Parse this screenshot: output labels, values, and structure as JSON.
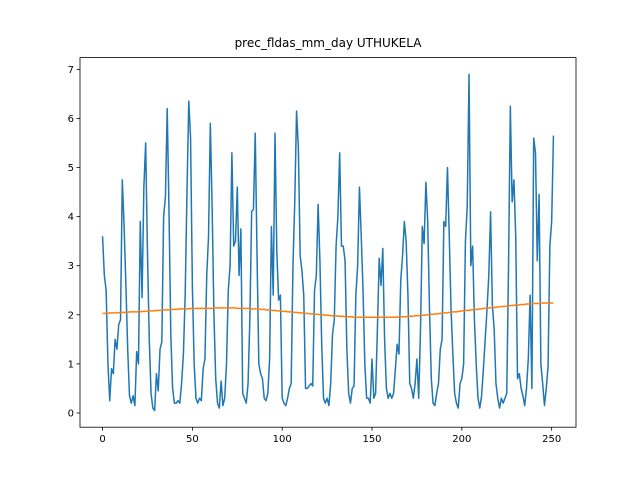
{
  "chart_data": {
    "type": "line",
    "title": "prec_fldas_mm_day UTHUKELA",
    "x": [
      0,
      1,
      2,
      3,
      4,
      5,
      6,
      7,
      8,
      9,
      10,
      11,
      12,
      13,
      14,
      15,
      16,
      17,
      18,
      19,
      20,
      21,
      22,
      23,
      24,
      25,
      26,
      27,
      28,
      29,
      30,
      31,
      32,
      33,
      34,
      35,
      36,
      37,
      38,
      39,
      40,
      41,
      42,
      43,
      44,
      45,
      46,
      47,
      48,
      49,
      50,
      51,
      52,
      53,
      54,
      55,
      56,
      57,
      58,
      59,
      60,
      61,
      62,
      63,
      64,
      65,
      66,
      67,
      68,
      69,
      70,
      71,
      72,
      73,
      74,
      75,
      76,
      77,
      78,
      79,
      80,
      81,
      82,
      83,
      84,
      85,
      86,
      87,
      88,
      89,
      90,
      91,
      92,
      93,
      94,
      95,
      96,
      97,
      98,
      99,
      100,
      101,
      102,
      103,
      104,
      105,
      106,
      107,
      108,
      109,
      110,
      111,
      112,
      113,
      114,
      115,
      116,
      117,
      118,
      119,
      120,
      121,
      122,
      123,
      124,
      125,
      126,
      127,
      128,
      129,
      130,
      131,
      132,
      133,
      134,
      135,
      136,
      137,
      138,
      139,
      140,
      141,
      142,
      143,
      144,
      145,
      146,
      147,
      148,
      149,
      150,
      151,
      152,
      153,
      154,
      155,
      156,
      157,
      158,
      159,
      160,
      161,
      162,
      163,
      164,
      165,
      166,
      167,
      168,
      169,
      170,
      171,
      172,
      173,
      174,
      175,
      176,
      177,
      178,
      179,
      180,
      181,
      182,
      183,
      184,
      185,
      186,
      187,
      188,
      189,
      190,
      191,
      192,
      193,
      194,
      195,
      196,
      197,
      198,
      199,
      200,
      201,
      202,
      203,
      204,
      205,
      206,
      207,
      208,
      209,
      210,
      211,
      212,
      213,
      214,
      215,
      216,
      217,
      218,
      219,
      220,
      221,
      222,
      223,
      224,
      225,
      226,
      227,
      228,
      229,
      230,
      231,
      232,
      233,
      234,
      235,
      236,
      237,
      238,
      239,
      240,
      241,
      242,
      243,
      244,
      245,
      246,
      247,
      248,
      249,
      250,
      251
    ],
    "series": [
      {
        "color": "#1f77b4",
        "values": [
          3.6,
          2.8,
          2.5,
          1.0,
          0.25,
          0.9,
          0.8,
          1.5,
          1.3,
          1.8,
          1.9,
          4.75,
          3.8,
          2.6,
          1.3,
          0.35,
          0.2,
          0.35,
          0.15,
          1.25,
          1.0,
          3.9,
          2.35,
          4.6,
          5.5,
          3.3,
          1.5,
          0.4,
          0.1,
          0.05,
          0.8,
          0.45,
          1.3,
          1.45,
          4.0,
          4.4,
          6.2,
          4.1,
          1.6,
          0.5,
          0.2,
          0.2,
          0.25,
          0.2,
          0.6,
          1.2,
          2.4,
          4.5,
          6.35,
          5.6,
          2.6,
          1.0,
          0.3,
          0.2,
          0.3,
          0.25,
          0.9,
          1.1,
          2.8,
          3.6,
          5.9,
          4.2,
          2.0,
          0.7,
          0.2,
          0.1,
          0.65,
          0.15,
          0.3,
          1.0,
          2.5,
          3.0,
          5.3,
          3.4,
          3.5,
          4.6,
          2.8,
          3.75,
          0.4,
          0.3,
          0.2,
          0.6,
          1.9,
          4.1,
          4.15,
          5.7,
          3.2,
          1.0,
          0.8,
          0.7,
          0.3,
          0.25,
          0.4,
          1.1,
          3.8,
          2.4,
          5.7,
          3.3,
          2.3,
          2.4,
          0.3,
          0.2,
          0.15,
          0.3,
          0.5,
          0.6,
          3.0,
          4.3,
          6.15,
          5.4,
          3.2,
          2.9,
          2.4,
          0.5,
          0.5,
          0.55,
          0.6,
          0.55,
          2.5,
          2.8,
          4.25,
          3.1,
          1.4,
          0.3,
          0.2,
          0.3,
          0.15,
          0.6,
          1.6,
          1.9,
          3.4,
          4.0,
          5.3,
          3.4,
          3.4,
          3.1,
          1.3,
          0.4,
          0.2,
          0.5,
          0.55,
          2.4,
          3.0,
          4.6,
          3.6,
          2.5,
          1.0,
          0.3,
          0.3,
          0.2,
          1.1,
          0.3,
          0.4,
          1.7,
          3.15,
          2.6,
          3.35,
          1.5,
          0.5,
          0.3,
          0.4,
          0.3,
          0.4,
          0.9,
          1.4,
          1.2,
          2.7,
          3.2,
          3.9,
          3.5,
          2.4,
          0.6,
          0.5,
          0.3,
          0.6,
          1.1,
          0.3,
          1.7,
          3.8,
          3.45,
          4.7,
          3.9,
          2.1,
          0.7,
          0.2,
          0.15,
          0.4,
          0.6,
          1.3,
          1.5,
          3.9,
          3.8,
          5.0,
          3.6,
          2.1,
          1.2,
          0.4,
          0.2,
          0.1,
          0.6,
          0.7,
          1.0,
          3.5,
          4.2,
          6.9,
          3.0,
          3.4,
          1.9,
          1.0,
          0.3,
          0.1,
          0.35,
          0.9,
          1.5,
          2.1,
          2.8,
          4.1,
          2.2,
          1.7,
          0.6,
          0.3,
          0.1,
          0.3,
          0.2,
          0.3,
          0.4,
          3.0,
          6.25,
          4.3,
          4.75,
          3.6,
          0.7,
          0.8,
          0.5,
          0.35,
          0.15,
          0.5,
          1.1,
          2.4,
          0.5,
          5.6,
          5.3,
          3.1,
          4.45,
          1.0,
          0.6,
          0.15,
          0.5,
          0.95,
          3.4,
          3.9,
          5.65
        ]
      },
      {
        "color": "#ff7f0e",
        "values": [
          2.03,
          2.03,
          2.03,
          2.03,
          2.04,
          2.04,
          2.04,
          2.04,
          2.04,
          2.04,
          2.05,
          2.05,
          2.05,
          2.05,
          2.05,
          2.06,
          2.06,
          2.06,
          2.06,
          2.06,
          2.06,
          2.06,
          2.07,
          2.07,
          2.07,
          2.07,
          2.08,
          2.08,
          2.08,
          2.08,
          2.09,
          2.09,
          2.09,
          2.09,
          2.1,
          2.1,
          2.1,
          2.1,
          2.11,
          2.11,
          2.11,
          2.11,
          2.11,
          2.12,
          2.12,
          2.12,
          2.12,
          2.12,
          2.12,
          2.13,
          2.13,
          2.13,
          2.13,
          2.13,
          2.13,
          2.13,
          2.13,
          2.13,
          2.13,
          2.13,
          2.13,
          2.13,
          2.14,
          2.14,
          2.14,
          2.14,
          2.14,
          2.14,
          2.14,
          2.14,
          2.14,
          2.14,
          2.14,
          2.14,
          2.14,
          2.13,
          2.13,
          2.13,
          2.13,
          2.13,
          2.13,
          2.13,
          2.13,
          2.12,
          2.12,
          2.12,
          2.12,
          2.11,
          2.11,
          2.11,
          2.11,
          2.1,
          2.1,
          2.1,
          2.09,
          2.09,
          2.09,
          2.08,
          2.08,
          2.08,
          2.07,
          2.07,
          2.07,
          2.06,
          2.06,
          2.06,
          2.05,
          2.05,
          2.05,
          2.04,
          2.04,
          2.04,
          2.03,
          2.03,
          2.03,
          2.02,
          2.02,
          2.02,
          2.01,
          2.01,
          2.01,
          2.0,
          2.0,
          2.0,
          1.99,
          1.99,
          1.99,
          1.98,
          1.98,
          1.98,
          1.98,
          1.97,
          1.97,
          1.97,
          1.97,
          1.96,
          1.96,
          1.96,
          1.96,
          1.96,
          1.95,
          1.95,
          1.95,
          1.95,
          1.95,
          1.95,
          1.95,
          1.95,
          1.95,
          1.95,
          1.95,
          1.95,
          1.95,
          1.95,
          1.95,
          1.95,
          1.95,
          1.95,
          1.95,
          1.95,
          1.95,
          1.95,
          1.95,
          1.95,
          1.95,
          1.96,
          1.96,
          1.96,
          1.96,
          1.96,
          1.97,
          1.97,
          1.97,
          1.97,
          1.98,
          1.98,
          1.98,
          1.99,
          1.99,
          1.99,
          2.0,
          2.0,
          2.0,
          2.01,
          2.01,
          2.02,
          2.02,
          2.02,
          2.03,
          2.03,
          2.04,
          2.04,
          2.04,
          2.05,
          2.05,
          2.06,
          2.06,
          2.06,
          2.07,
          2.07,
          2.08,
          2.08,
          2.09,
          2.09,
          2.09,
          2.1,
          2.1,
          2.11,
          2.11,
          2.11,
          2.12,
          2.12,
          2.13,
          2.13,
          2.13,
          2.14,
          2.14,
          2.15,
          2.15,
          2.15,
          2.16,
          2.16,
          2.17,
          2.17,
          2.17,
          2.18,
          2.18,
          2.19,
          2.19,
          2.19,
          2.2,
          2.2,
          2.2,
          2.21,
          2.21,
          2.21,
          2.22,
          2.22,
          2.22,
          2.22,
          2.23,
          2.23,
          2.23,
          2.23,
          2.24,
          2.24,
          2.24,
          2.24,
          2.24,
          2.24,
          2.24,
          2.24
        ]
      }
    ],
    "xlim": [
      -12.55,
      263.55
    ],
    "xticks": [
      0,
      50,
      100,
      150,
      200,
      250
    ],
    "ylim": [
      -0.29,
      7.24
    ],
    "yticks": [
      0,
      1,
      2,
      3,
      4,
      5,
      6,
      7
    ]
  }
}
